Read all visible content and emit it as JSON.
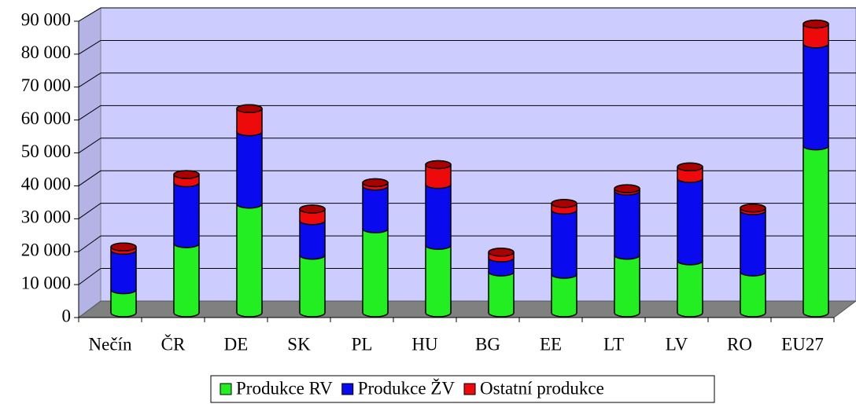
{
  "chart_data": {
    "type": "bar3d_stacked",
    "categories": [
      "Nečín",
      "ČR",
      "DE",
      "SK",
      "PL",
      "HU",
      "BG",
      "EE",
      "LT",
      "LV",
      "RO",
      "EU27"
    ],
    "series": [
      {
        "name": "Produkce RV",
        "color": "#22ee22",
        "values": [
          7000,
          21000,
          33000,
          17500,
          25500,
          20500,
          12400,
          11700,
          17500,
          15800,
          12400,
          50700
        ]
      },
      {
        "name": "Produkce ŽV",
        "color": "#0a0aee",
        "values": [
          12000,
          18500,
          22000,
          10500,
          13000,
          18500,
          4300,
          19500,
          19500,
          25000,
          18600,
          31000
        ]
      },
      {
        "name": "Ostatní produkce",
        "color": "#ee0a0a",
        "values": [
          1000,
          2500,
          7000,
          3500,
          1000,
          6000,
          1700,
          2000,
          700,
          3500,
          800,
          6000
        ]
      }
    ],
    "ylim": [
      0,
      90000
    ],
    "yticks": [
      {
        "value": 0,
        "label": "0"
      },
      {
        "value": 10000,
        "label": "10 000"
      },
      {
        "value": 20000,
        "label": "20 000"
      },
      {
        "value": 30000,
        "label": "30 000"
      },
      {
        "value": 40000,
        "label": "40 000"
      },
      {
        "value": 50000,
        "label": "50 000"
      },
      {
        "value": 60000,
        "label": "60 000"
      },
      {
        "value": 70000,
        "label": "70 000"
      },
      {
        "value": 80000,
        "label": "80 000"
      },
      {
        "value": 90000,
        "label": "90 000"
      }
    ],
    "grid": true,
    "legend": "bottom"
  }
}
